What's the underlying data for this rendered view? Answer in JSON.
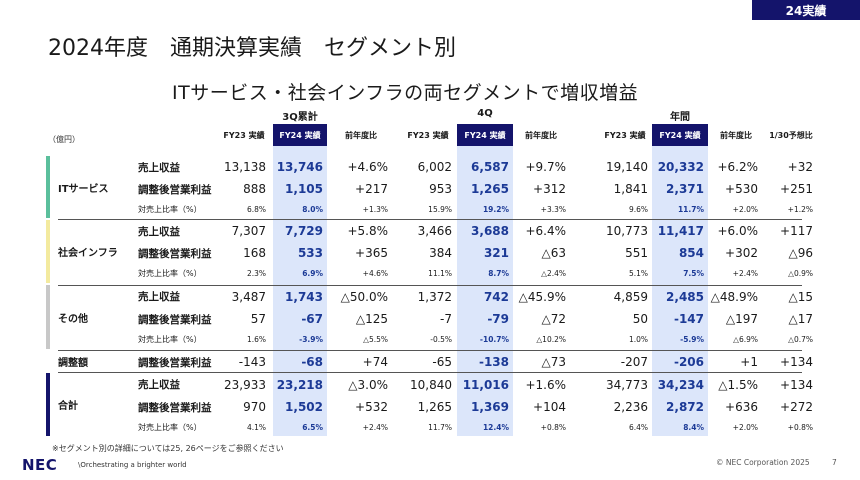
{
  "badge": "24実績",
  "title": "2024年度　通期決算実績　セグメント別",
  "subtitle": "ITサービス・社会インフラの両セグメントで増収増益",
  "unit": "（億円）",
  "groups": [
    "3Q累計",
    "4Q",
    "年間"
  ],
  "col_headers": [
    "FY23 実績",
    "FY24 実績",
    "前年度比",
    "FY23 実績",
    "FY24 実績",
    "前年度比",
    "FY23 実績",
    "FY24 実績",
    "前年度比",
    "1/30予想比"
  ],
  "segments": [
    {
      "name": "ITサービス",
      "color": "#5bbf9c"
    },
    {
      "name": "社会インフラ",
      "color": "#f3ea9f"
    },
    {
      "name": "その他",
      "color": "#c8c8c8"
    },
    {
      "name": "調整額",
      "color": "#ffffff"
    },
    {
      "name": "合計",
      "color": "#14146b"
    }
  ],
  "rows": [
    {
      "label": "売上収益",
      "values": [
        "13,138",
        "13,746",
        "+4.6%",
        "6,002",
        "6,587",
        "+9.7%",
        "19,140",
        "20,332",
        "+6.2%",
        "+32"
      ]
    },
    {
      "label": "調整後営業利益",
      "values": [
        "888",
        "1,105",
        "+217",
        "953",
        "1,265",
        "+312",
        "1,841",
        "2,371",
        "+530",
        "+251"
      ]
    },
    {
      "label": "対売上比率（%）",
      "values": [
        "6.8%",
        "8.0%",
        "+1.3%",
        "15.9%",
        "19.2%",
        "+3.3%",
        "9.6%",
        "11.7%",
        "+2.0%",
        "+1.2%"
      ]
    },
    {
      "label": "売上収益",
      "values": [
        "7,307",
        "7,729",
        "+5.8%",
        "3,466",
        "3,688",
        "+6.4%",
        "10,773",
        "11,417",
        "+6.0%",
        "+117"
      ]
    },
    {
      "label": "調整後営業利益",
      "values": [
        "168",
        "533",
        "+365",
        "384",
        "321",
        "△63",
        "551",
        "854",
        "+302",
        "△96"
      ]
    },
    {
      "label": "対売上比率（%）",
      "values": [
        "2.3%",
        "6.9%",
        "+4.6%",
        "11.1%",
        "8.7%",
        "△2.4%",
        "5.1%",
        "7.5%",
        "+2.4%",
        "△0.9%"
      ]
    },
    {
      "label": "売上収益",
      "values": [
        "3,487",
        "1,743",
        "△50.0%",
        "1,372",
        "742",
        "△45.9%",
        "4,859",
        "2,485",
        "△48.9%",
        "△15"
      ]
    },
    {
      "label": "調整後営業利益",
      "values": [
        "57",
        "-67",
        "△125",
        "-7",
        "-79",
        "△72",
        "50",
        "-147",
        "△197",
        "△17"
      ]
    },
    {
      "label": "対売上比率（%）",
      "values": [
        "1.6%",
        "-3.9%",
        "△5.5%",
        "-0.5%",
        "-10.7%",
        "△10.2%",
        "1.0%",
        "-5.9%",
        "△6.9%",
        "△0.7%"
      ]
    },
    {
      "label": "調整後営業利益",
      "values": [
        "-143",
        "-68",
        "+74",
        "-65",
        "-138",
        "△73",
        "-207",
        "-206",
        "+1",
        "+134"
      ]
    },
    {
      "label": "売上収益",
      "values": [
        "23,933",
        "23,218",
        "△3.0%",
        "10,840",
        "11,016",
        "+1.6%",
        "34,773",
        "34,234",
        "△1.5%",
        "+134"
      ]
    },
    {
      "label": "調整後営業利益",
      "values": [
        "970",
        "1,502",
        "+532",
        "1,265",
        "1,369",
        "+104",
        "2,236",
        "2,872",
        "+636",
        "+272"
      ]
    },
    {
      "label": "対売上比率（%）",
      "values": [
        "4.1%",
        "6.5%",
        "+2.4%",
        "11.7%",
        "12.4%",
        "+0.8%",
        "6.4%",
        "8.4%",
        "+2.0%",
        "+0.8%"
      ]
    }
  ],
  "footnote": "※セグメント別の詳細については25, 26ページをご参照ください",
  "logo": "NEC",
  "tagline": "\\Orchestrating a brighter world",
  "copyright": "© NEC Corporation 2025",
  "page_number": "7"
}
